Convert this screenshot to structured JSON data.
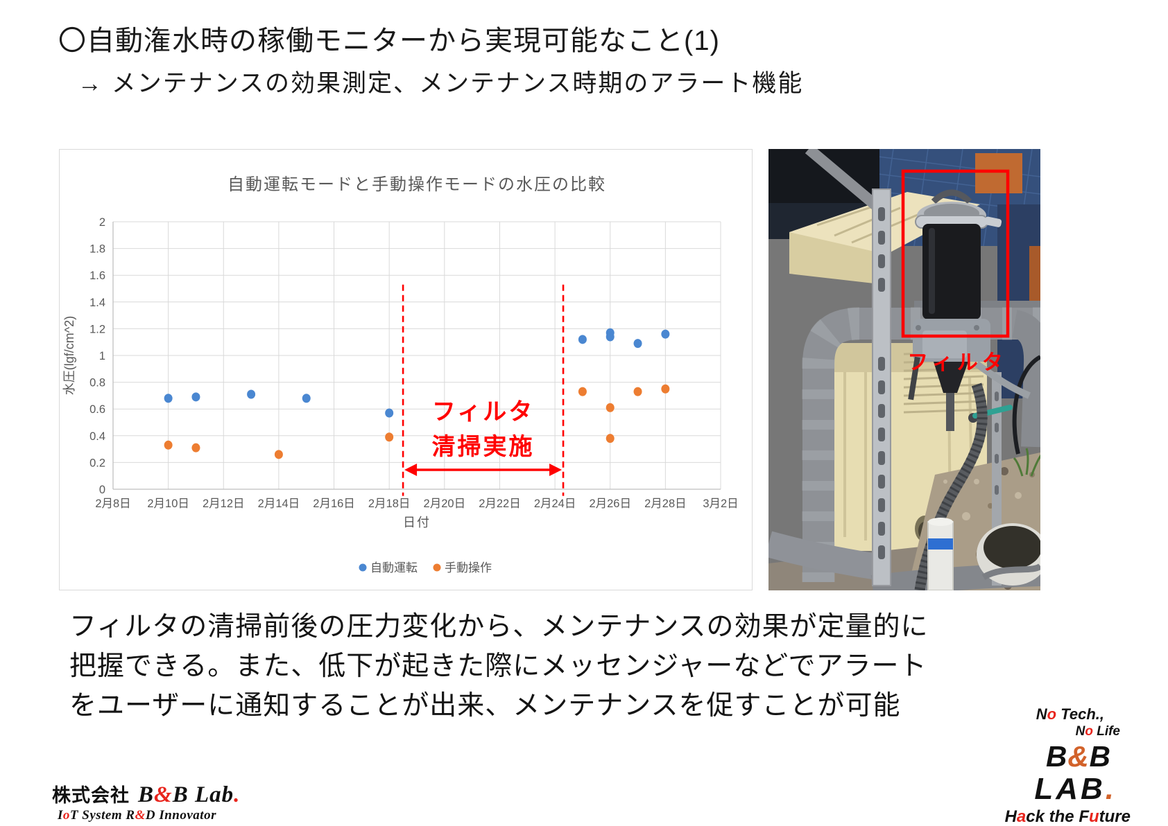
{
  "slide": {
    "title": "〇自動潅水時の稼働モニターから実現可能なこと(1)",
    "subtitle": "→ メンテナンスの効果測定、メンテナンス時期のアラート機能"
  },
  "chart_data": {
    "type": "scatter",
    "title": "自動運転モードと手動操作モードの水圧の比較",
    "xlabel": "日付",
    "ylabel": "水圧(lgf/cm^2)",
    "ylim": [
      0,
      2
    ],
    "ytick_step": 0.2,
    "x_ticks": [
      "2月8日",
      "2月10日",
      "2月12日",
      "2月14日",
      "2月16日",
      "2月18日",
      "2月20日",
      "2月22日",
      "2月24日",
      "2月26日",
      "2月28日",
      "3月2日"
    ],
    "x_range_days": [
      8,
      30
    ],
    "grid": true,
    "legend_position": "bottom",
    "series": [
      {
        "name": "自動運転",
        "color": "#4A87D1",
        "points": [
          {
            "day": 10,
            "value": 0.68
          },
          {
            "day": 11,
            "value": 0.69
          },
          {
            "day": 13,
            "value": 0.71
          },
          {
            "day": 15,
            "value": 0.68
          },
          {
            "day": 18,
            "value": 0.57
          },
          {
            "day": 25,
            "value": 1.12
          },
          {
            "day": 26,
            "value": 1.17
          },
          {
            "day": 26,
            "value": 1.14
          },
          {
            "day": 27,
            "value": 1.09
          },
          {
            "day": 28,
            "value": 1.16
          }
        ]
      },
      {
        "name": "手動操作",
        "color": "#ED7D31",
        "points": [
          {
            "day": 10,
            "value": 0.33
          },
          {
            "day": 11,
            "value": 0.31
          },
          {
            "day": 14,
            "value": 0.26
          },
          {
            "day": 18,
            "value": 0.39
          },
          {
            "day": 25,
            "value": 0.73
          },
          {
            "day": 26,
            "value": 0.61
          },
          {
            "day": 26,
            "value": 0.38
          },
          {
            "day": 27,
            "value": 0.73
          },
          {
            "day": 28,
            "value": 0.75
          }
        ]
      }
    ],
    "annotation": {
      "label_line1": "フィルタ",
      "label_line2": "清掃実施",
      "color": "#FF0000",
      "dashed_lines_days": [
        18.5,
        24.3
      ],
      "dashed_top_value": 1.53,
      "dashed_bottom_value": -0.05,
      "arrow_y_value": 0.145,
      "label_y_values": [
        0.52,
        0.26
      ]
    }
  },
  "photo": {
    "label": "フィルタ"
  },
  "body": {
    "lines": [
      "フィルタの清掃前後の圧力変化から、メンテナンスの効果が定量的に",
      "把握できる。また、低下が起きた際にメッセンジャーなどでアラート",
      "をユーザーに通知することが出来、メンテナンスを促すことが可能"
    ]
  },
  "footer_left": {
    "company_prefix": "株式会社",
    "brand_segments": [
      {
        "t": "B",
        "c": "#111111"
      },
      {
        "t": "&",
        "c": "#e8251d"
      },
      {
        "t": "B Lab",
        "c": "#111111"
      },
      {
        "t": ".",
        "c": "#e8251d"
      }
    ],
    "tagline_segments": [
      {
        "t": "I",
        "c": "#111111"
      },
      {
        "t": "o",
        "c": "#e8251d"
      },
      {
        "t": "T System R",
        "c": "#111111"
      },
      {
        "t": "&",
        "c": "#e8251d"
      },
      {
        "t": "D Innovator",
        "c": "#111111"
      }
    ]
  },
  "footer_right": {
    "lines": [
      {
        "segments": [
          {
            "t": "N",
            "c": "#111111"
          },
          {
            "t": "o",
            "c": "#e8251d"
          },
          {
            "t": " Tech.,",
            "c": "#111111"
          }
        ]
      },
      {
        "segments": [
          {
            "t": "N",
            "c": "#111111"
          },
          {
            "t": "o",
            "c": "#e8251d"
          },
          {
            "t": " Life",
            "c": "#111111"
          }
        ]
      },
      {
        "segments": [
          {
            "t": "B",
            "c": "#111111"
          },
          {
            "t": "&",
            "c": "#d2622a"
          },
          {
            "t": "B",
            "c": "#111111"
          }
        ]
      },
      {
        "segments": [
          {
            "t": "LAB",
            "c": "#111111"
          },
          {
            "t": ".",
            "c": "#d2622a"
          }
        ]
      },
      {
        "segments": [
          {
            "t": "H",
            "c": "#111111"
          },
          {
            "t": "a",
            "c": "#e8251d"
          },
          {
            "t": "ck the F",
            "c": "#111111"
          },
          {
            "t": "u",
            "c": "#e8251d"
          },
          {
            "t": "ture",
            "c": "#111111"
          }
        ]
      }
    ]
  }
}
